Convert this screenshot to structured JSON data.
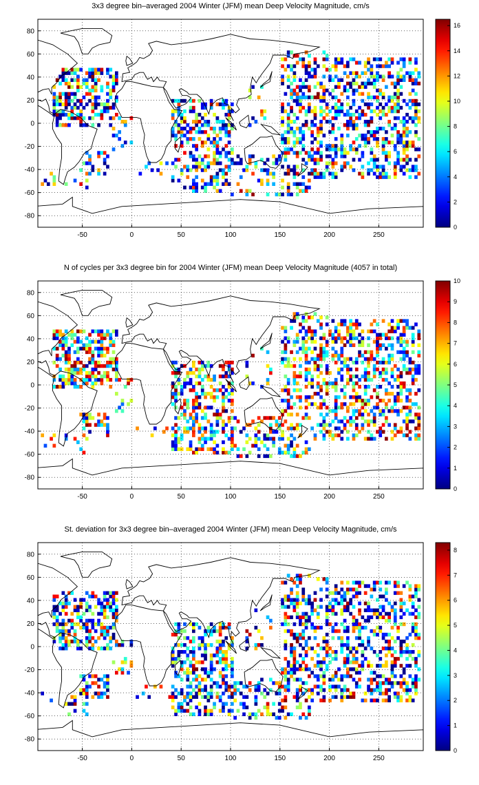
{
  "chart_data": [
    {
      "type": "heatmap",
      "title": "3x3 degree bin–averaged 2004 Winter (JFM) mean Deep Velocity Magnitude, cm/s",
      "xlim": [
        -95,
        295
      ],
      "ylim": [
        -90,
        90
      ],
      "xticks": [
        -50,
        0,
        50,
        100,
        150,
        200,
        250
      ],
      "yticks": [
        -80,
        -60,
        -40,
        -20,
        0,
        20,
        40,
        60,
        80
      ],
      "colorbar": {
        "min": 0,
        "max": 16.5,
        "ticks": [
          0,
          2,
          4,
          6,
          8,
          10,
          12,
          14,
          16
        ]
      },
      "grid": true,
      "colormap": "jet",
      "seed": 17
    },
    {
      "type": "heatmap",
      "title": "N of cycles per 3x3 degree bin for 2004 Winter (JFM) mean Deep Velocity Magnitude (4057 in total)",
      "xlim": [
        -95,
        295
      ],
      "ylim": [
        -90,
        90
      ],
      "xticks": [
        -50,
        0,
        50,
        100,
        150,
        200,
        250
      ],
      "yticks": [
        -80,
        -60,
        -40,
        -20,
        0,
        20,
        40,
        60,
        80
      ],
      "colorbar": {
        "min": 0,
        "max": 10,
        "ticks": [
          0,
          1,
          2,
          3,
          4,
          5,
          6,
          7,
          8,
          9,
          10
        ]
      },
      "grid": true,
      "colormap": "jet",
      "seed": 41
    },
    {
      "type": "heatmap",
      "title": "St. deviation for 3x3 degree bin–averaged 2004 Winter (JFM) mean Deep Velocity Magnitude, cm/s",
      "xlim": [
        -95,
        295
      ],
      "ylim": [
        -90,
        90
      ],
      "xticks": [
        -50,
        0,
        50,
        100,
        150,
        200,
        250
      ],
      "yticks": [
        -80,
        -60,
        -40,
        -20,
        0,
        20,
        40,
        60,
        80
      ],
      "colorbar": {
        "min": 0,
        "max": 8.3,
        "ticks": [
          0,
          1,
          2,
          3,
          4,
          5,
          6,
          7,
          8
        ]
      },
      "grid": true,
      "colormap": "jet",
      "seed": 73
    }
  ]
}
